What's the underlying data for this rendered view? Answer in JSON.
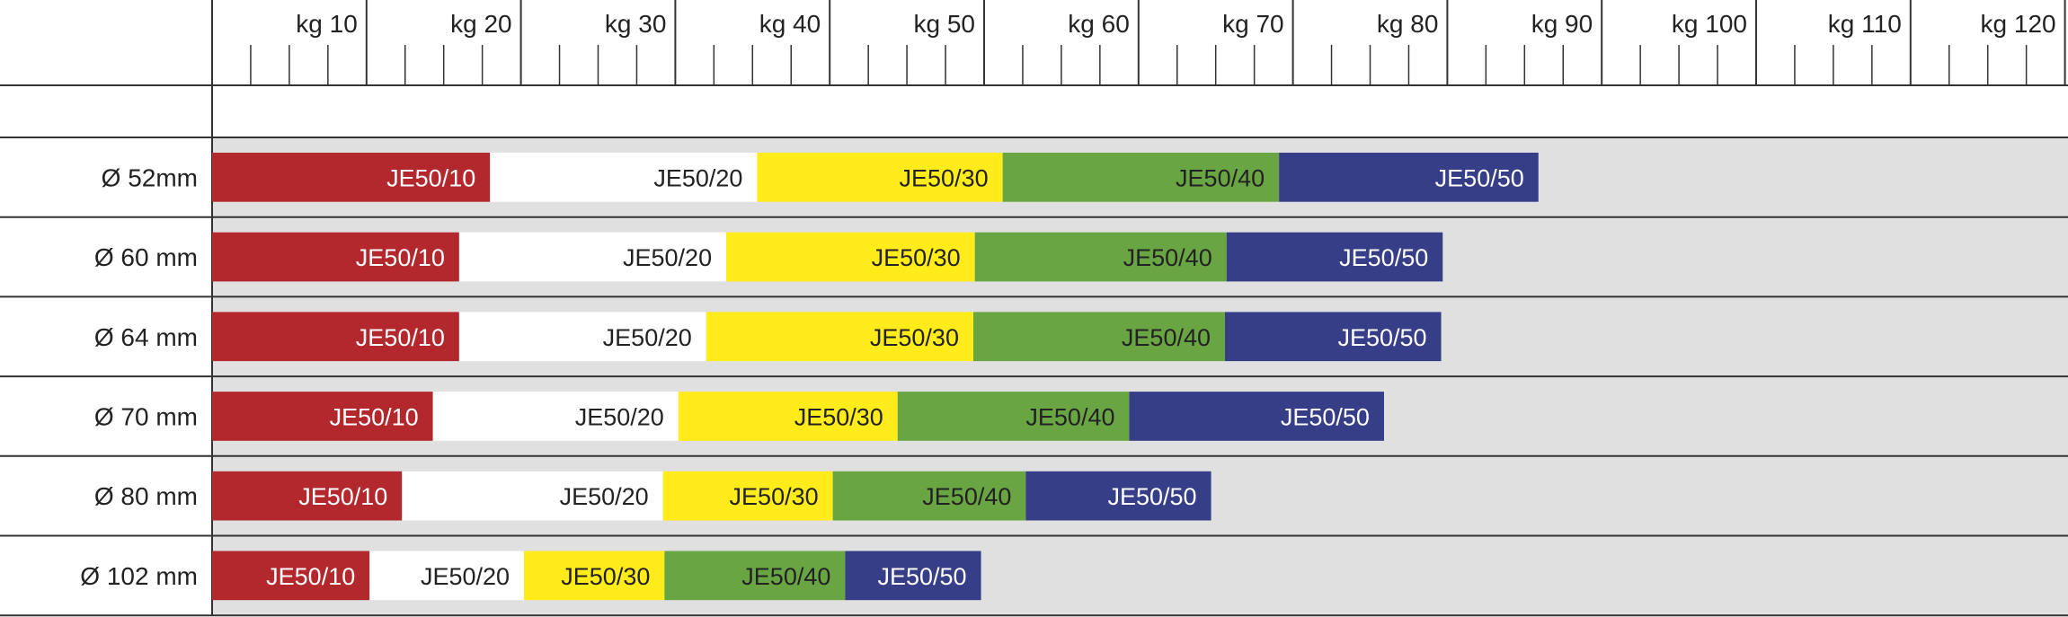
{
  "chart_data": {
    "type": "bar",
    "orientation": "horizontal",
    "stacked": true,
    "x_axis": {
      "position": "top",
      "unit_prefix": "kg",
      "range": [
        0,
        120
      ],
      "major_step": 10,
      "minor_step": 2.5,
      "tick_labels": [
        "kg 10",
        "kg 20",
        "kg 30",
        "kg 40",
        "kg 50",
        "kg 60",
        "kg 70",
        "kg 80",
        "kg 90",
        "kg 100",
        "kg 110",
        "kg 120"
      ]
    },
    "categories": [
      "Ø 52mm",
      "Ø 60 mm",
      "Ø 64 mm",
      "Ø 70 mm",
      "Ø 80 mm",
      "Ø 102 mm"
    ],
    "series": [
      {
        "name": "JE50/10",
        "color": "#b2282d",
        "text_color": "#ffffff",
        "values": [
          18.0,
          16.0,
          16.0,
          14.3,
          12.3,
          10.2
        ]
      },
      {
        "name": "JE50/20",
        "color": "#ffffff",
        "text_color": "#222222",
        "values": [
          17.3,
          17.3,
          16.0,
          15.9,
          16.9,
          10.0
        ]
      },
      {
        "name": "JE50/30",
        "color": "#ffec1a",
        "text_color": "#222222",
        "values": [
          15.9,
          16.1,
          17.3,
          14.2,
          11.0,
          9.1
        ]
      },
      {
        "name": "JE50/40",
        "color": "#6aa544",
        "text_color": "#222222",
        "values": [
          17.9,
          16.3,
          16.3,
          15.0,
          12.5,
          11.7
        ]
      },
      {
        "name": "JE50/50",
        "color": "#353e86",
        "text_color": "#ffffff",
        "values": [
          16.8,
          14.0,
          14.0,
          16.5,
          12.0,
          8.8
        ]
      }
    ],
    "colors": {
      "plot_background": "#e0e0e0",
      "grid_line": "#333333"
    },
    "grid": false,
    "legend": "none"
  }
}
